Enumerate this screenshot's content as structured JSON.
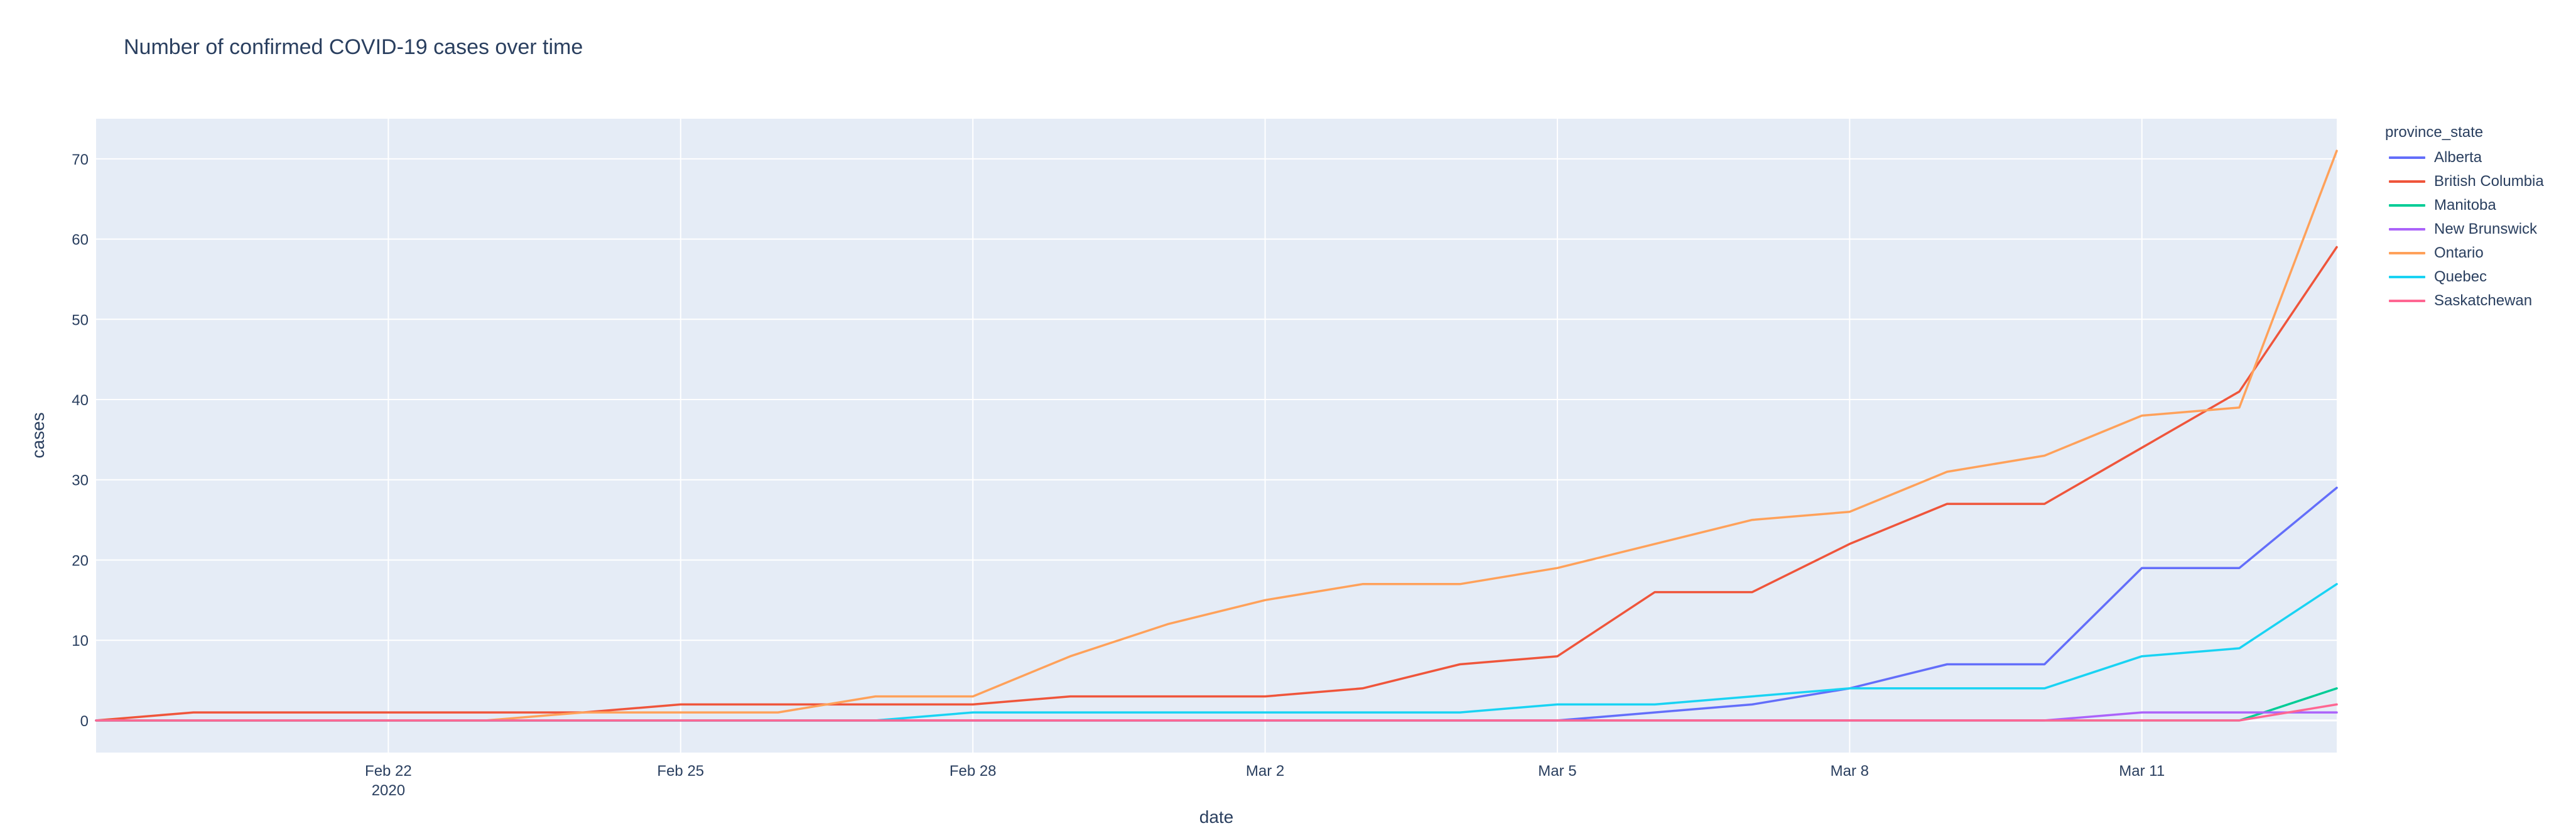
{
  "chart_data": {
    "type": "line",
    "title": "Number of confirmed COVID-19 cases over time",
    "xlabel": "date",
    "ylabel": "cases",
    "x": [
      "Feb 19",
      "Feb 20",
      "Feb 21",
      "Feb 22",
      "Feb 23",
      "Feb 24",
      "Feb 25",
      "Feb 26",
      "Feb 27",
      "Feb 28",
      "Feb 29",
      "Mar 1",
      "Mar 2",
      "Mar 3",
      "Mar 4",
      "Mar 5",
      "Mar 6",
      "Mar 7",
      "Mar 8",
      "Mar 9",
      "Mar 10",
      "Mar 11",
      "Mar 12",
      "Mar 13"
    ],
    "x_ticks": [
      {
        "label": "Feb 22",
        "index": 3,
        "sublabel": "2020"
      },
      {
        "label": "Feb 25",
        "index": 6
      },
      {
        "label": "Feb 28",
        "index": 9
      },
      {
        "label": "Mar 2",
        "index": 12
      },
      {
        "label": "Mar 5",
        "index": 15
      },
      {
        "label": "Mar 8",
        "index": 18
      },
      {
        "label": "Mar 11",
        "index": 21
      }
    ],
    "ylim": [
      -4,
      75
    ],
    "y_ticks": [
      0,
      10,
      20,
      30,
      40,
      50,
      60,
      70
    ],
    "grid": true,
    "legend_title": "province_state",
    "legend_position": "right",
    "plot_background": "#e5ecf6",
    "series": [
      {
        "name": "Alberta",
        "color": "#636efa",
        "values": [
          0,
          0,
          0,
          0,
          0,
          0,
          0,
          0,
          0,
          0,
          0,
          0,
          0,
          0,
          0,
          0,
          1,
          2,
          4,
          7,
          7,
          19,
          19,
          29
        ]
      },
      {
        "name": "British Columbia",
        "color": "#ef553b",
        "values": [
          0,
          1,
          1,
          1,
          1,
          1,
          2,
          2,
          2,
          2,
          3,
          3,
          3,
          4,
          7,
          8,
          16,
          16,
          22,
          27,
          27,
          34,
          41,
          59
        ]
      },
      {
        "name": "Manitoba",
        "color": "#00cc96",
        "values": [
          0,
          0,
          0,
          0,
          0,
          0,
          0,
          0,
          0,
          0,
          0,
          0,
          0,
          0,
          0,
          0,
          0,
          0,
          0,
          0,
          0,
          0,
          0,
          4
        ]
      },
      {
        "name": "New Brunswick",
        "color": "#ab63fa",
        "values": [
          0,
          0,
          0,
          0,
          0,
          0,
          0,
          0,
          0,
          0,
          0,
          0,
          0,
          0,
          0,
          0,
          0,
          0,
          0,
          0,
          0,
          1,
          1,
          1
        ]
      },
      {
        "name": "Ontario",
        "color": "#ffa15a",
        "values": [
          0,
          0,
          0,
          0,
          0,
          1,
          1,
          1,
          3,
          3,
          8,
          12,
          15,
          17,
          17,
          19,
          22,
          25,
          26,
          31,
          33,
          38,
          39,
          71
        ]
      },
      {
        "name": "Quebec",
        "color": "#19d3f3",
        "values": [
          0,
          0,
          0,
          0,
          0,
          0,
          0,
          0,
          0,
          1,
          1,
          1,
          1,
          1,
          1,
          2,
          2,
          3,
          4,
          4,
          4,
          8,
          9,
          17
        ]
      },
      {
        "name": "Saskatchewan",
        "color": "#ff6692",
        "values": [
          0,
          0,
          0,
          0,
          0,
          0,
          0,
          0,
          0,
          0,
          0,
          0,
          0,
          0,
          0,
          0,
          0,
          0,
          0,
          0,
          0,
          0,
          0,
          2
        ]
      }
    ]
  }
}
